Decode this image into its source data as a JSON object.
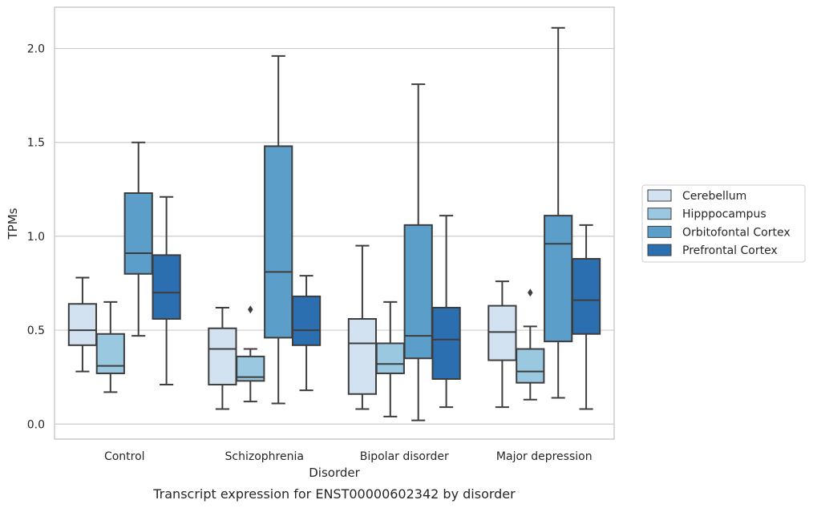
{
  "caption": "Transcript expression for ENST00000602342 by disorder",
  "chart_data": {
    "type": "boxplot",
    "xlabel": "Disorder",
    "ylabel": "TPMs",
    "categories": [
      "Control",
      "Schizophrenia",
      "Bipolar disorder",
      "Major depression"
    ],
    "ylim": [
      -0.08,
      2.22
    ],
    "yticks": [
      "0.0",
      "0.5",
      "1.0",
      "1.5",
      "2.0"
    ],
    "grid": "horizontal",
    "legend_position": "right",
    "series": [
      {
        "name": "Cerebellum",
        "color": "#d2e2f1",
        "boxes": [
          {
            "min": 0.28,
            "q1": 0.42,
            "median": 0.5,
            "q3": 0.64,
            "max": 0.78,
            "outliers": []
          },
          {
            "min": 0.08,
            "q1": 0.21,
            "median": 0.4,
            "q3": 0.51,
            "max": 0.62,
            "outliers": []
          },
          {
            "min": 0.08,
            "q1": 0.16,
            "median": 0.43,
            "q3": 0.56,
            "max": 0.95,
            "outliers": []
          },
          {
            "min": 0.09,
            "q1": 0.34,
            "median": 0.49,
            "q3": 0.63,
            "max": 0.76,
            "outliers": []
          }
        ]
      },
      {
        "name": "Hipppocampus",
        "color": "#9ac8e0",
        "boxes": [
          {
            "min": 0.17,
            "q1": 0.27,
            "median": 0.31,
            "q3": 0.48,
            "max": 0.65,
            "outliers": []
          },
          {
            "min": 0.12,
            "q1": 0.23,
            "median": 0.25,
            "q3": 0.36,
            "max": 0.4,
            "outliers": [
              0.61
            ]
          },
          {
            "min": 0.04,
            "q1": 0.27,
            "median": 0.32,
            "q3": 0.43,
            "max": 0.65,
            "outliers": []
          },
          {
            "min": 0.13,
            "q1": 0.22,
            "median": 0.28,
            "q3": 0.4,
            "max": 0.52,
            "outliers": [
              0.7
            ]
          }
        ]
      },
      {
        "name": "Orbitofontal Cortex",
        "color": "#5a9ec9",
        "boxes": [
          {
            "min": 0.47,
            "q1": 0.8,
            "median": 0.91,
            "q3": 1.23,
            "max": 1.5,
            "outliers": []
          },
          {
            "min": 0.11,
            "q1": 0.46,
            "median": 0.81,
            "q3": 1.48,
            "max": 1.96,
            "outliers": []
          },
          {
            "min": 0.02,
            "q1": 0.35,
            "median": 0.47,
            "q3": 1.06,
            "max": 1.81,
            "outliers": []
          },
          {
            "min": 0.14,
            "q1": 0.44,
            "median": 0.96,
            "q3": 1.11,
            "max": 2.11,
            "outliers": []
          }
        ]
      },
      {
        "name": "Prefrontal Cortex",
        "color": "#2c6fb0",
        "boxes": [
          {
            "min": 0.21,
            "q1": 0.56,
            "median": 0.7,
            "q3": 0.9,
            "max": 1.21,
            "outliers": []
          },
          {
            "min": 0.18,
            "q1": 0.42,
            "median": 0.5,
            "q3": 0.68,
            "max": 0.79,
            "outliers": []
          },
          {
            "min": 0.09,
            "q1": 0.24,
            "median": 0.45,
            "q3": 0.62,
            "max": 1.11,
            "outliers": []
          },
          {
            "min": 0.08,
            "q1": 0.48,
            "median": 0.66,
            "q3": 0.88,
            "max": 1.06,
            "outliers": []
          }
        ]
      }
    ]
  }
}
